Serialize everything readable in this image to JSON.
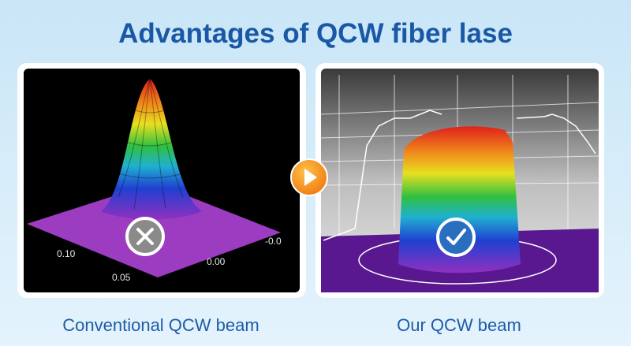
{
  "title": "Advantages of QCW fiber lase",
  "panels": [
    {
      "caption": "Conventional QCW beam",
      "axis_labels": [
        "0.10",
        "0.05",
        "0.00",
        "-0.0"
      ]
    },
    {
      "caption": "Our QCW beam"
    }
  ]
}
